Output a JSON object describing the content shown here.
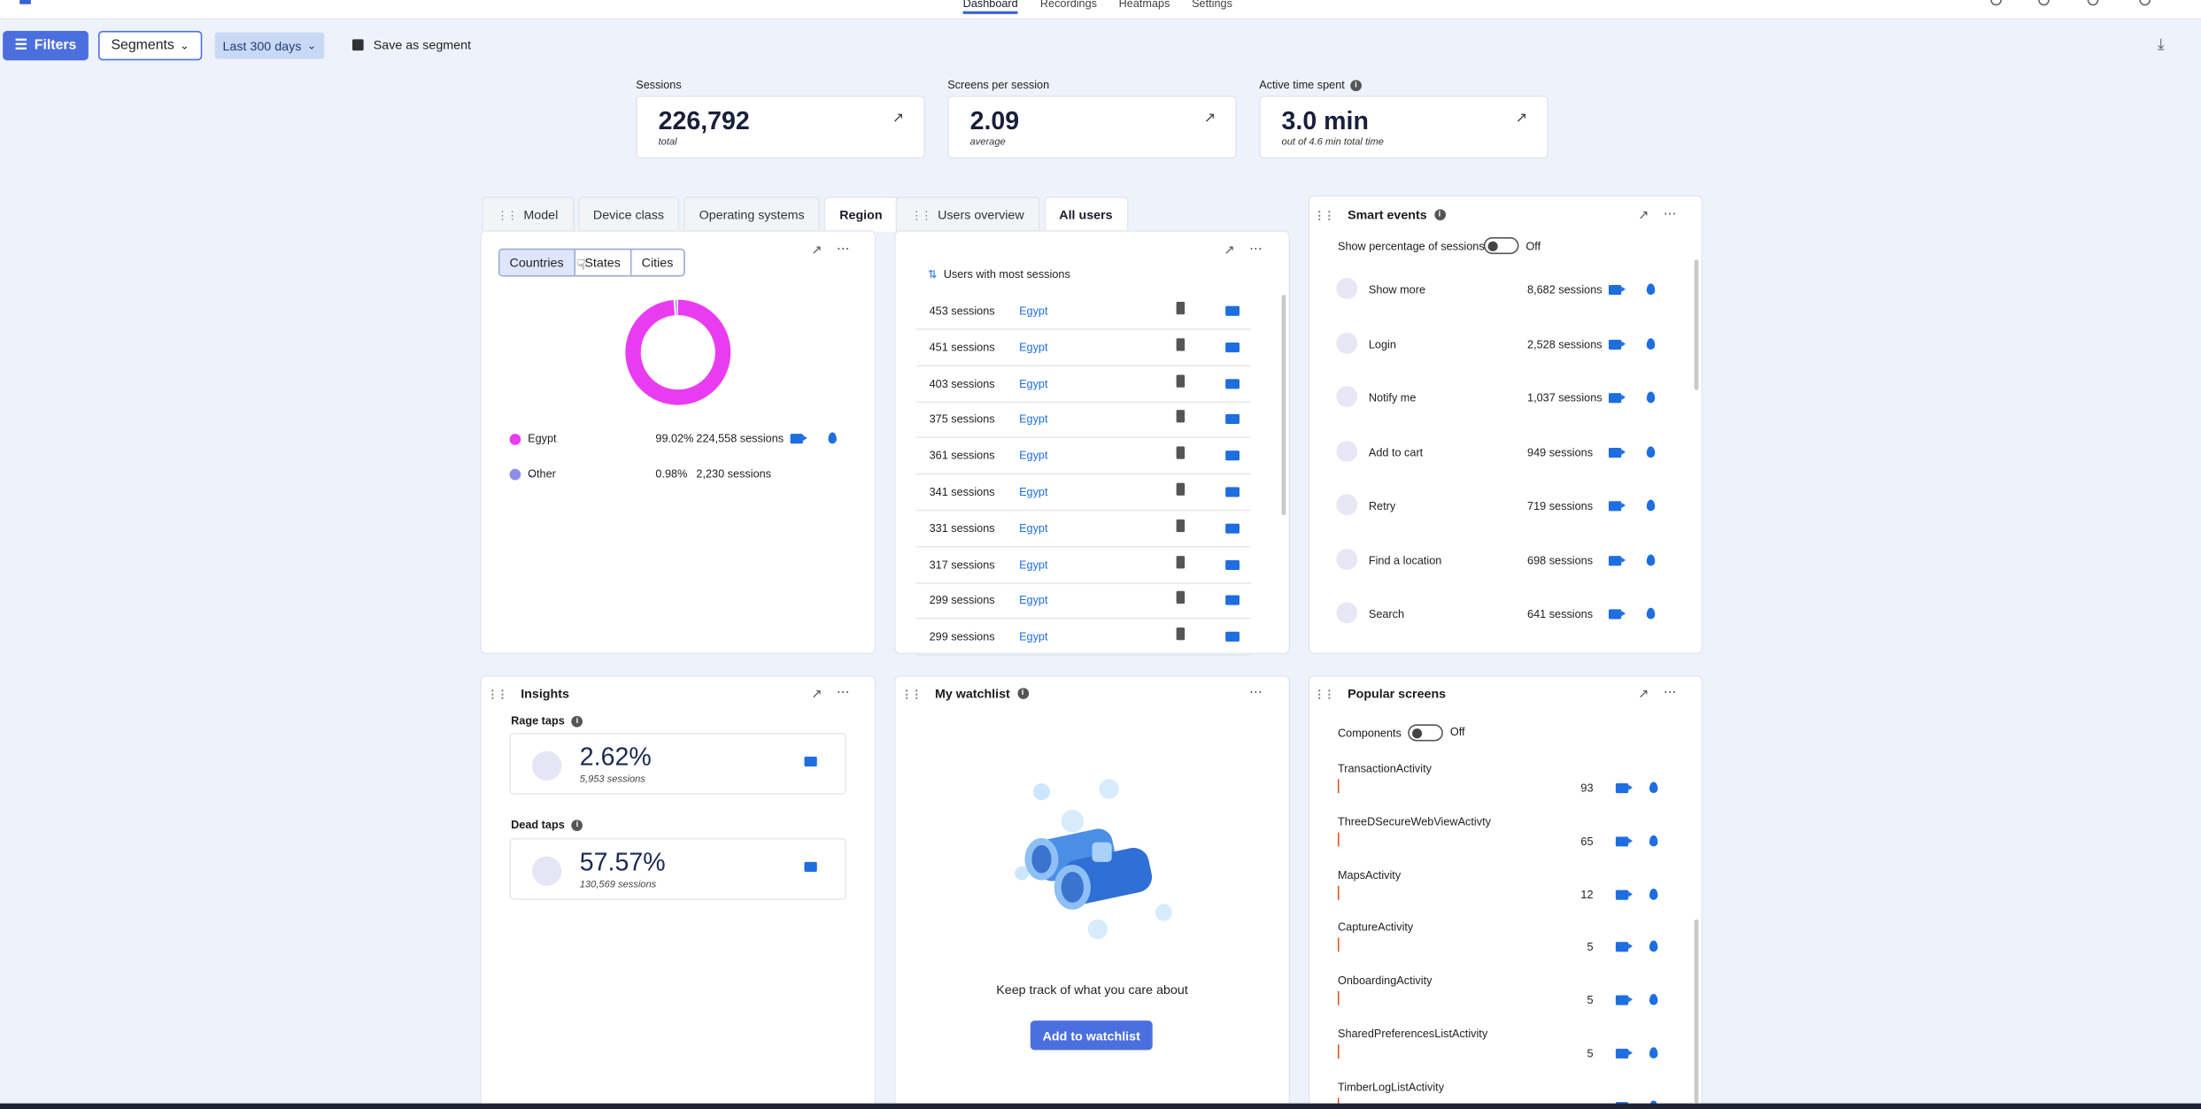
{
  "nav": {
    "tabs": [
      "Dashboard",
      "Recordings",
      "Heatmaps",
      "Settings"
    ],
    "active": "Dashboard"
  },
  "toolbar": {
    "filters": "Filters",
    "segments": "Segments",
    "range": "Last 300 days",
    "save": "Save as segment"
  },
  "kpis": [
    {
      "label": "Sessions",
      "value": "226,792",
      "sub": "total"
    },
    {
      "label": "Screens per session",
      "value": "2.09",
      "sub": "average"
    },
    {
      "label": "Active time spent",
      "value": "3.0 min",
      "sub": "out of 4.6 min total time"
    }
  ],
  "region": {
    "tabs": [
      "Model",
      "Device class",
      "Operating systems",
      "Region"
    ],
    "segments": [
      "Countries",
      "States",
      "Cities"
    ],
    "rows": [
      {
        "name": "Egypt",
        "pct": "99.02%",
        "sessions": "224,558 sessions",
        "color": "#e93cf0"
      },
      {
        "name": "Other",
        "pct": "0.98%",
        "sessions": "2,230 sessions",
        "color": "#8a8ee8"
      }
    ],
    "chart_data": {
      "type": "pie",
      "categories": [
        "Egypt",
        "Other"
      ],
      "values": [
        99.02,
        0.98
      ]
    }
  },
  "users": {
    "tabs": [
      "Users overview",
      "All users"
    ],
    "sort_label": "Users with most sessions",
    "rows": [
      {
        "sessions": "453 sessions",
        "country": "Egypt"
      },
      {
        "sessions": "451 sessions",
        "country": "Egypt"
      },
      {
        "sessions": "403 sessions",
        "country": "Egypt"
      },
      {
        "sessions": "375 sessions",
        "country": "Egypt"
      },
      {
        "sessions": "361 sessions",
        "country": "Egypt"
      },
      {
        "sessions": "341 sessions",
        "country": "Egypt"
      },
      {
        "sessions": "331 sessions",
        "country": "Egypt"
      },
      {
        "sessions": "317 sessions",
        "country": "Egypt"
      },
      {
        "sessions": "299 sessions",
        "country": "Egypt"
      },
      {
        "sessions": "299 sessions",
        "country": "Egypt"
      }
    ]
  },
  "smart_events": {
    "title": "Smart events",
    "toggle_label": "Show percentage of sessions",
    "toggle_state": "Off",
    "rows": [
      {
        "name": "Show more",
        "sessions": "8,682 sessions"
      },
      {
        "name": "Login",
        "sessions": "2,528 sessions"
      },
      {
        "name": "Notify me",
        "sessions": "1,037 sessions"
      },
      {
        "name": "Add to cart",
        "sessions": "949 sessions"
      },
      {
        "name": "Retry",
        "sessions": "719 sessions"
      },
      {
        "name": "Find a location",
        "sessions": "698 sessions"
      },
      {
        "name": "Search",
        "sessions": "641 sessions"
      }
    ]
  },
  "insights": {
    "title": "Insights",
    "items": [
      {
        "label": "Rage taps",
        "value": "2.62%",
        "sessions": "5,953 sessions"
      },
      {
        "label": "Dead taps",
        "value": "57.57%",
        "sessions": "130,569 sessions"
      }
    ]
  },
  "watchlist": {
    "title": "My watchlist",
    "message": "Keep track of what you care about",
    "button": "Add to watchlist"
  },
  "popular": {
    "title": "Popular screens",
    "toggle_label": "Components",
    "toggle_state": "Off",
    "rows": [
      {
        "name": "TransactionActivity",
        "count": "93"
      },
      {
        "name": "ThreeDSecureWebViewActivty",
        "count": "65"
      },
      {
        "name": "MapsActivity",
        "count": "12"
      },
      {
        "name": "CaptureActivity",
        "count": "5"
      },
      {
        "name": "OnboardingActivity",
        "count": "5"
      },
      {
        "name": "SharedPreferencesListActivity",
        "count": "5"
      },
      {
        "name": "TimberLogListActivity",
        "count": ""
      }
    ]
  }
}
